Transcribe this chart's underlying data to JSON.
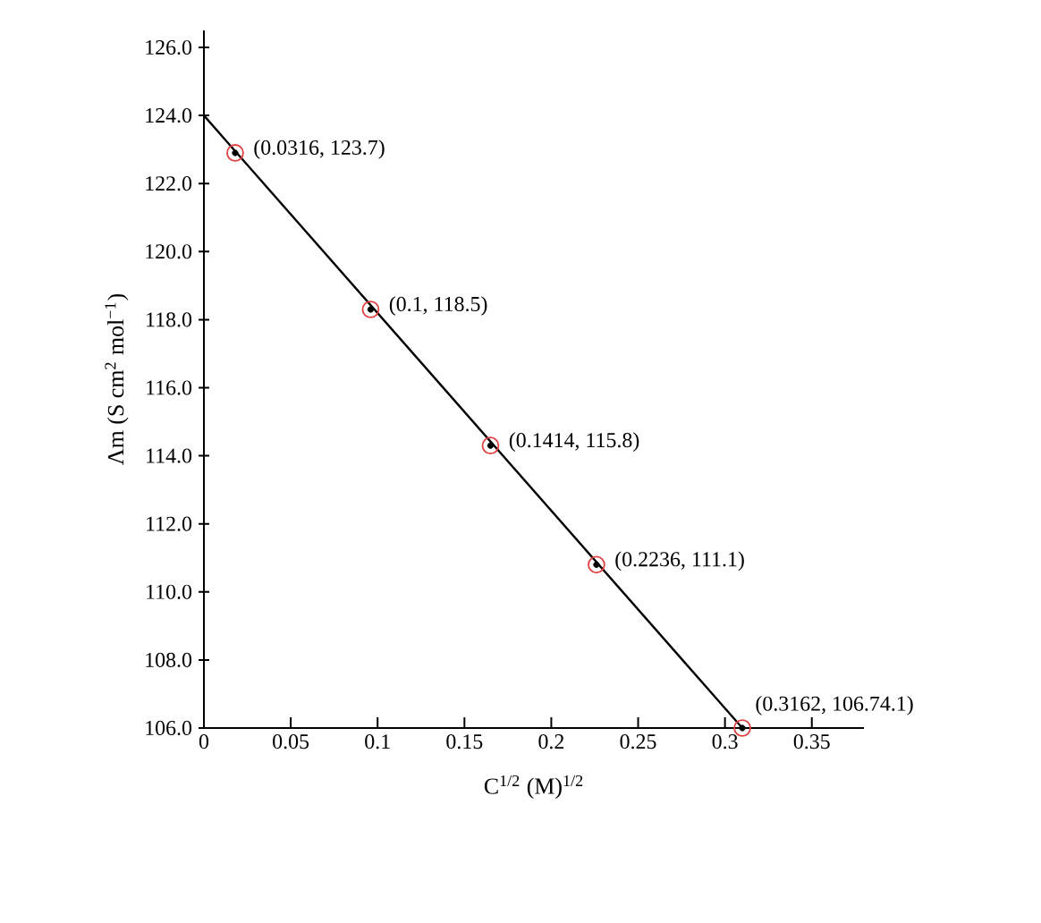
{
  "chart_data": {
    "type": "scatter",
    "xlabel": "C$^{1/2}$ (M)$^{1/2}$",
    "ylabel": "Λm (S cm$^{2}$ mol$^{−1}$)",
    "xlim": [
      0,
      0.38
    ],
    "ylim": [
      106,
      126.5
    ],
    "xticks": [
      0,
      0.05,
      0.1,
      0.15,
      0.2,
      0.25,
      0.3,
      0.35
    ],
    "yticks": [
      {
        "value": 106,
        "label": "106.0"
      },
      {
        "value": 108,
        "label": "108.0"
      },
      {
        "value": 110,
        "label": "110.0"
      },
      {
        "value": 112,
        "label": "112.0"
      },
      {
        "value": 114,
        "label": "114.0"
      },
      {
        "value": 116,
        "label": "116.0"
      },
      {
        "value": 118,
        "label": "118.0"
      },
      {
        "value": 120,
        "label": "120.0"
      },
      {
        "value": 122,
        "label": "122.0"
      },
      {
        "value": 124,
        "label": "124.0"
      },
      {
        "value": 126,
        "label": "126.0"
      }
    ],
    "grid": false,
    "series": [
      {
        "type": "line",
        "color": "#000000",
        "marker": "none",
        "line_style": "solid",
        "x": [
          0,
          0.31
        ],
        "values": [
          124,
          106
        ]
      },
      {
        "color": "#e04040",
        "marker": "circle",
        "x": [
          0.018,
          0.096,
          0.165,
          0.226,
          0.31
        ],
        "values": [
          122.9,
          118.3,
          114.3,
          110.8,
          106.0
        ]
      }
    ],
    "annotations": [
      {
        "text": "(0.0316, 123.7)",
        "x": 0.018,
        "y": 122.9
      },
      {
        "text": "(0.1, 118.5)",
        "x": 0.096,
        "y": 118.3
      },
      {
        "text": "(0.1414, 115.8)",
        "x": 0.165,
        "y": 114.3
      },
      {
        "text": "(0.2236, 111.1)",
        "x": 0.226,
        "y": 110.8
      },
      {
        "text": "(0.3162, 106.74.1)",
        "x": 0.31,
        "y": 106.0
      }
    ]
  }
}
